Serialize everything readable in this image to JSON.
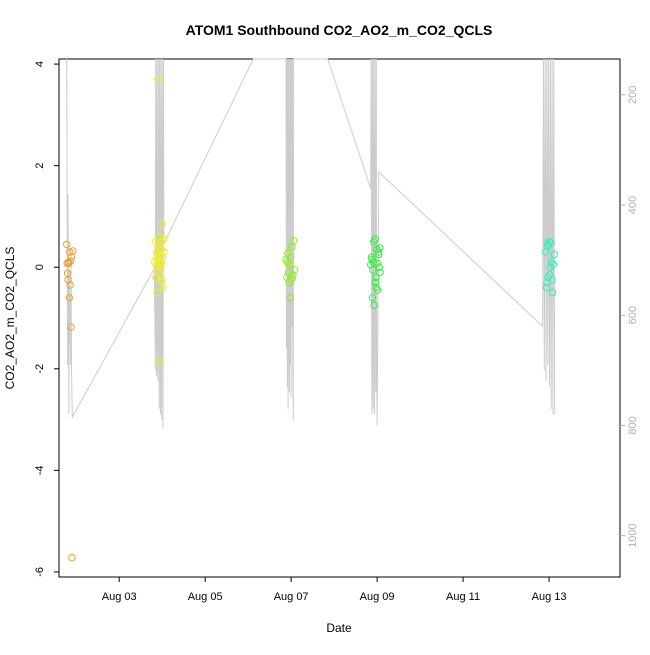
{
  "chart_data": {
    "type": "scatter",
    "title": "ATOM1 Southbound CO2_AO2_m_CO2_QCLS",
    "xlabel": "Date",
    "ylabel": "CO2_AO2_m_CO2_QCLS",
    "xlim": [
      1.6,
      14.65
    ],
    "ylim": [
      -6.1,
      4.1
    ],
    "x_ticks": [
      3,
      5,
      7,
      9,
      11,
      13
    ],
    "x_tick_labels": [
      "Aug 03",
      "Aug 05",
      "Aug 07",
      "Aug 09",
      "Aug 11",
      "Aug 13"
    ],
    "y_ticks": [
      -6,
      -4,
      -2,
      0,
      2,
      4
    ],
    "y_tick_labels": [
      "-6",
      "-4",
      "-2",
      "0",
      "2",
      "4"
    ],
    "secondary_axis": {
      "side": "right",
      "range": [
        1075,
        135
      ],
      "ticks": [
        200,
        400,
        600,
        800,
        1000
      ],
      "tick_labels": [
        "200",
        "400",
        "600",
        "800",
        "1000"
      ],
      "color": "#b0b0b0",
      "reversed": true
    },
    "series": [
      {
        "color": "#E8A030",
        "x": [
          1.78,
          1.79,
          1.8,
          1.81,
          1.82,
          1.83,
          1.84,
          1.85,
          1.86,
          1.87,
          1.88,
          1.89,
          1.9,
          1.92
        ],
        "y": [
          0.45,
          0.08,
          -0.12,
          -0.25,
          0.1,
          0.08,
          -0.6,
          0.3,
          -0.35,
          0.12,
          -1.18,
          0.2,
          -5.72,
          0.32
        ]
      },
      {
        "color": "#F0F020",
        "x": [
          3.82,
          3.84,
          3.85,
          3.86,
          3.87,
          3.88,
          3.89,
          3.9,
          3.91,
          3.92,
          3.93,
          3.94,
          3.95,
          3.96,
          3.97,
          3.98,
          3.99,
          4.0,
          4.01,
          4.02,
          4.03,
          4.04,
          3.88,
          3.92,
          3.95,
          3.98,
          4.0,
          3.86,
          3.91,
          3.97
        ],
        "y": [
          0.1,
          0.5,
          -0.2,
          0.2,
          0.3,
          0.0,
          0.15,
          3.7,
          0.4,
          -0.1,
          0.6,
          -1.85,
          0.25,
          0.05,
          -0.3,
          0.5,
          0.1,
          0.85,
          0.2,
          -0.4,
          0.55,
          0.3,
          -0.5,
          0.45,
          -0.15,
          0.35,
          -0.25,
          0.05,
          0.22,
          0.0
        ]
      },
      {
        "color": "#90EE20",
        "x": [
          6.88,
          6.9,
          6.92,
          6.94,
          6.96,
          6.98,
          7.0,
          7.02,
          7.04,
          7.06,
          7.08,
          6.91,
          6.95,
          6.99,
          7.03
        ],
        "y": [
          0.15,
          -0.2,
          0.28,
          -0.1,
          0.05,
          -0.6,
          -0.25,
          0.4,
          -0.15,
          0.52,
          -0.05,
          0.1,
          -0.3,
          0.2,
          -0.2
        ]
      },
      {
        "color": "#30F040",
        "x": [
          8.85,
          8.87,
          8.89,
          8.91,
          8.93,
          8.95,
          8.97,
          8.99,
          9.01,
          9.03,
          9.05,
          9.07,
          8.88,
          8.92,
          8.96,
          9.0,
          9.04,
          8.9,
          8.98,
          9.06
        ],
        "y": [
          0.05,
          0.2,
          -0.6,
          0.1,
          -0.75,
          0.55,
          -0.2,
          0.35,
          -0.45,
          0.3,
          0.0,
          -0.1,
          0.15,
          0.5,
          -0.3,
          0.08,
          0.25,
          -0.05,
          -0.4,
          0.38
        ]
      },
      {
        "color": "#30F0C0",
        "x": [
          12.92,
          12.94,
          12.96,
          12.98,
          13.0,
          13.02,
          13.04,
          13.06,
          13.08,
          13.1,
          13.12,
          12.95,
          12.99,
          13.03,
          13.07
        ],
        "y": [
          0.3,
          -0.4,
          0.45,
          -0.2,
          0.5,
          -0.15,
          0.48,
          0.1,
          -0.5,
          0.05,
          0.25,
          -0.3,
          0.42,
          0.0,
          -0.25
        ]
      }
    ],
    "background_trace": {
      "color": "#cccccc",
      "axis": "secondary",
      "points": [
        [
          1.78,
          135
        ],
        [
          1.79,
          430
        ],
        [
          1.8,
          690
        ],
        [
          1.81,
          380
        ],
        [
          1.82,
          600
        ],
        [
          1.83,
          780
        ],
        [
          1.84,
          520
        ],
        [
          1.85,
          650
        ],
        [
          1.86,
          560
        ],
        [
          1.87,
          690
        ],
        [
          1.88,
          480
        ],
        [
          1.89,
          700
        ],
        [
          1.91,
          785
        ],
        [
          3.82,
          515
        ],
        [
          3.84,
          700
        ],
        [
          3.85,
          135
        ],
        [
          3.86,
          480
        ],
        [
          3.87,
          710
        ],
        [
          3.88,
          135
        ],
        [
          3.89,
          600
        ],
        [
          3.9,
          720
        ],
        [
          3.91,
          135
        ],
        [
          3.92,
          480
        ],
        [
          3.93,
          770
        ],
        [
          3.94,
          135
        ],
        [
          3.95,
          560
        ],
        [
          3.96,
          780
        ],
        [
          3.97,
          135
        ],
        [
          3.98,
          440
        ],
        [
          3.99,
          790
        ],
        [
          4.0,
          135
        ],
        [
          4.01,
          520
        ],
        [
          4.02,
          805
        ],
        [
          4.03,
          135
        ],
        [
          4.04,
          470
        ],
        [
          6.12,
          135
        ],
        [
          6.88,
          135
        ],
        [
          6.89,
          660
        ],
        [
          6.9,
          135
        ],
        [
          6.91,
          730
        ],
        [
          6.92,
          135
        ],
        [
          6.93,
          770
        ],
        [
          6.94,
          135
        ],
        [
          6.95,
          600
        ],
        [
          6.96,
          740
        ],
        [
          6.97,
          135
        ],
        [
          6.98,
          690
        ],
        [
          6.99,
          135
        ],
        [
          7.0,
          750
        ],
        [
          7.01,
          135
        ],
        [
          7.02,
          620
        ],
        [
          7.03,
          135
        ],
        [
          7.04,
          700
        ],
        [
          7.05,
          790
        ],
        [
          7.06,
          135
        ],
        [
          7.85,
          135
        ],
        [
          8.85,
          370
        ],
        [
          8.86,
          135
        ],
        [
          8.87,
          540
        ],
        [
          8.88,
          780
        ],
        [
          8.89,
          135
        ],
        [
          8.9,
          490
        ],
        [
          8.91,
          770
        ],
        [
          8.92,
          135
        ],
        [
          8.93,
          600
        ],
        [
          8.94,
          780
        ],
        [
          8.95,
          135
        ],
        [
          8.96,
          520
        ],
        [
          8.97,
          740
        ],
        [
          8.98,
          135
        ],
        [
          8.99,
          690
        ],
        [
          9.0,
          800
        ],
        [
          9.02,
          600
        ],
        [
          9.04,
          340
        ],
        [
          12.85,
          620
        ],
        [
          12.87,
          135
        ],
        [
          12.89,
          700
        ],
        [
          12.91,
          135
        ],
        [
          12.93,
          720
        ],
        [
          12.95,
          135
        ],
        [
          12.97,
          690
        ],
        [
          12.99,
          135
        ],
        [
          13.01,
          730
        ],
        [
          13.03,
          135
        ],
        [
          13.05,
          770
        ],
        [
          13.07,
          135
        ],
        [
          13.09,
          780
        ],
        [
          13.11,
          135
        ],
        [
          13.13,
          780
        ]
      ]
    },
    "grid": false,
    "legend": "none"
  }
}
